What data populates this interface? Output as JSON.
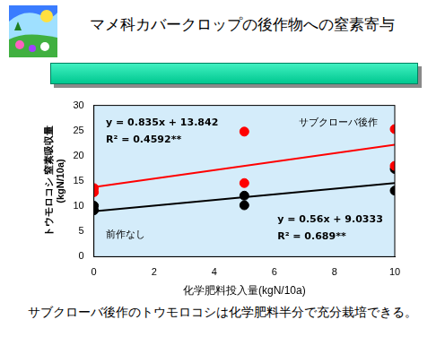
{
  "chart_data": {
    "type": "scatter",
    "title": "マメ科カバークロップの後作物への窒素寄与",
    "caption": "サブクローバ後作のトウモロコシは化学肥料半分で充分栽培できる。",
    "x_label": "化学肥料投入量(kgN/10a)",
    "y_label": [
      "トウモロコシ 窒素吸収量",
      "(kgN/10a)"
    ],
    "xlim": [
      0,
      10
    ],
    "xticks": [
      0,
      2,
      4,
      6,
      8,
      10
    ],
    "ylim": [
      0,
      30
    ],
    "yticks": [
      0,
      5,
      10,
      15,
      20,
      25,
      30
    ],
    "grid": false,
    "series": [
      {
        "name": "サブクローバ後作",
        "color": "#ff0000",
        "marker": "circle",
        "x": [
          0,
          0,
          5,
          5,
          10,
          10
        ],
        "values": [
          12.8,
          13.6,
          24.8,
          14.6,
          25.3,
          18.0
        ],
        "trend_x": [
          0,
          10
        ],
        "trend_values": [
          13.8,
          22.2
        ]
      },
      {
        "name": "前作なし",
        "color": "#000000",
        "marker": "circle",
        "x": [
          0,
          0,
          5,
          5,
          10,
          10
        ],
        "values": [
          9.2,
          10.1,
          10.2,
          12.1,
          13.1,
          17.4
        ],
        "trend_x": [
          0,
          10
        ],
        "trend_values": [
          9.0,
          14.6
        ]
      }
    ],
    "annotations": [
      {
        "text": "y = 0.835x + 13.842"
      },
      {
        "text": "R² = 0.4592**"
      },
      {
        "text": "y = 0.56x + 9.0333"
      },
      {
        "text": "R² = 0.689**"
      }
    ]
  }
}
